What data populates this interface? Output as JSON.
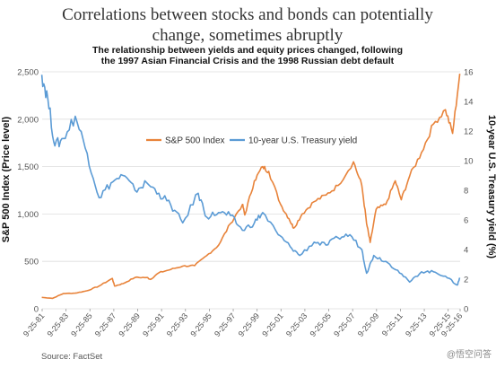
{
  "title_line1": "Correlations between stocks and bonds can potentially",
  "title_line2": "change, sometimes abruptly",
  "subtitle_line1": "The relationship between yields and equity prices changed, following",
  "subtitle_line2": "the 1997 Asian Financial Crisis and the 1998 Russian debt default",
  "source": "Source: FactSet",
  "watermark": "@悟空问答",
  "colors": {
    "sp500": "#E8833A",
    "treasury": "#5B9BD5",
    "grid": "#dddddd"
  },
  "chart_data": {
    "type": "line",
    "ylabel_left": "S&P 500 Index (Price level)",
    "ylabel_right": "10-year U.S. Treasury yield (%)",
    "ylim_left": [
      0,
      2500
    ],
    "ylim_right": [
      0,
      16
    ],
    "yticks_left": [
      "2,500",
      "2,000",
      "1,500",
      "1,000",
      "500",
      "0"
    ],
    "yticks_right": [
      "16",
      "14",
      "12",
      "10",
      "8",
      "6",
      "4",
      "2",
      "0"
    ],
    "x_ticks": [
      "9-25-81",
      "9-25-83",
      "9-25-85",
      "9-25-87",
      "9-25-89",
      "9-25-91",
      "9-25-93",
      "9-25-95",
      "9-25-97",
      "9-25-99",
      "9-25-01",
      "9-25-03",
      "9-25-05",
      "9-25-07",
      "9-25-09",
      "9-25-11",
      "9-25-13",
      "9-25-15",
      "9-25-16"
    ],
    "x_range": [
      1981.73,
      2016.73
    ],
    "grid": true,
    "legend_position": "top-center",
    "series": [
      {
        "name": "S&P 500 Index",
        "axis": "left",
        "x": [
          1981.7,
          1982.6,
          1983.5,
          1984.5,
          1985.5,
          1986.5,
          1987.6,
          1987.8,
          1988.5,
          1989.5,
          1990.5,
          1990.8,
          1991.5,
          1992.5,
          1993.5,
          1994.5,
          1995.5,
          1996.5,
          1997.5,
          1998.5,
          1998.7,
          1999.5,
          2000.2,
          2000.7,
          2001.7,
          2002.4,
          2002.8,
          2003.5,
          2004.5,
          2005.5,
          2006.5,
          2007.8,
          2008.5,
          2008.9,
          2009.2,
          2009.7,
          2010.5,
          2011.3,
          2011.8,
          2012.5,
          2013.5,
          2014.5,
          2015.5,
          2016.1,
          2016.7
        ],
        "values": [
          120,
          110,
          160,
          165,
          190,
          240,
          320,
          240,
          265,
          330,
          330,
          310,
          380,
          415,
          450,
          455,
          560,
          670,
          900,
          1100,
          990,
          1350,
          1500,
          1450,
          1100,
          950,
          850,
          1000,
          1130,
          1200,
          1300,
          1550,
          1300,
          900,
          700,
          1050,
          1100,
          1350,
          1150,
          1400,
          1650,
          1950,
          2100,
          1850,
          2480
        ]
      },
      {
        "name": "10-year U.S. Treasury yield",
        "axis": "right",
        "x": [
          1981.7,
          1982.2,
          1982.8,
          1983.5,
          1984.5,
          1985.5,
          1986.5,
          1987.5,
          1988.5,
          1989.5,
          1990.5,
          1991.5,
          1992.5,
          1993.5,
          1994.8,
          1995.5,
          1996.5,
          1997.5,
          1998.5,
          1999.5,
          2000.2,
          2001.5,
          2002.5,
          2003.3,
          2004.5,
          2005.5,
          2006.5,
          2007.5,
          2008.5,
          2008.9,
          2009.5,
          2010.5,
          2011.5,
          2012.5,
          2013.5,
          2014.5,
          2015.5,
          2016.5,
          2016.7
        ],
        "values": [
          15.8,
          14.2,
          11.0,
          11.5,
          13.0,
          10.5,
          7.5,
          8.5,
          9.0,
          8.0,
          8.5,
          7.8,
          7.0,
          5.8,
          7.8,
          6.2,
          6.5,
          6.3,
          5.3,
          5.8,
          6.5,
          5.0,
          4.2,
          3.6,
          4.5,
          4.3,
          4.8,
          5.0,
          4.0,
          2.4,
          3.6,
          3.2,
          2.6,
          1.8,
          2.5,
          2.5,
          2.2,
          1.6,
          2.1
        ]
      }
    ]
  }
}
